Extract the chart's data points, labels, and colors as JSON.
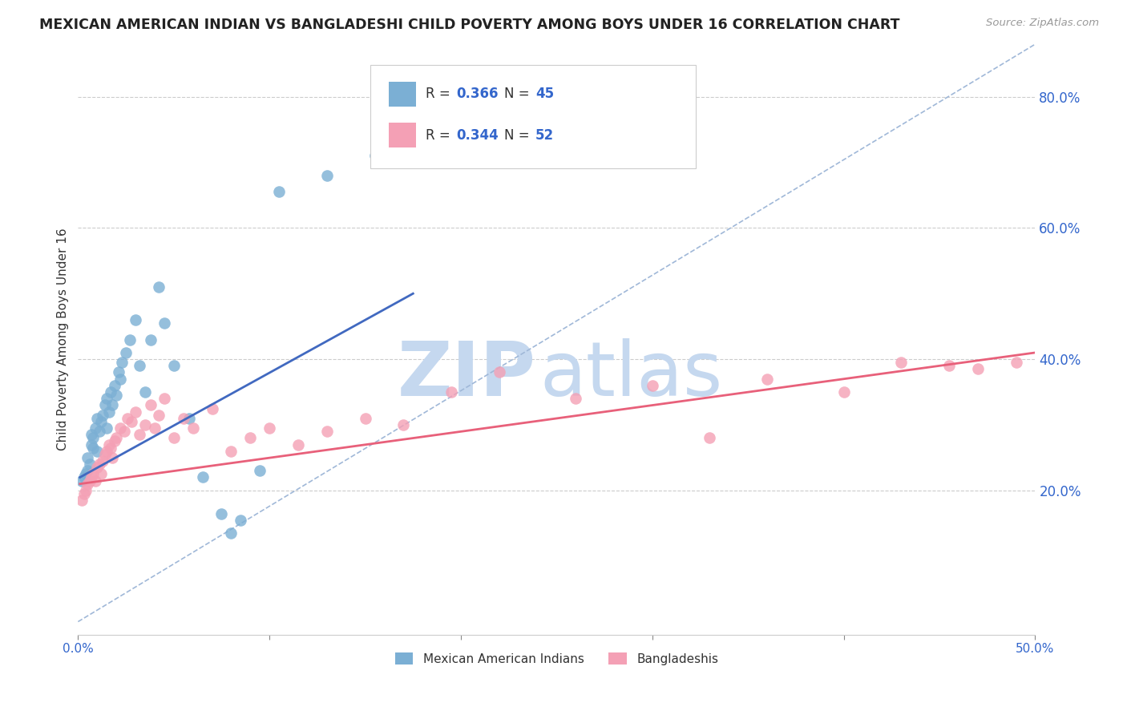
{
  "title": "MEXICAN AMERICAN INDIAN VS BANGLADESHI CHILD POVERTY AMONG BOYS UNDER 16 CORRELATION CHART",
  "source": "Source: ZipAtlas.com",
  "ylabel": "Child Poverty Among Boys Under 16",
  "y_tick_labels": [
    "20.0%",
    "40.0%",
    "60.0%",
    "80.0%"
  ],
  "y_tick_values": [
    0.2,
    0.4,
    0.6,
    0.8
  ],
  "xlim": [
    0.0,
    0.5
  ],
  "ylim": [
    -0.02,
    0.88
  ],
  "legend_r_blue": "0.366",
  "legend_n_blue": "45",
  "legend_r_pink": "0.344",
  "legend_n_pink": "52",
  "legend_label_blue": "Mexican American Indians",
  "legend_label_pink": "Bangladeshis",
  "blue_color": "#7bafd4",
  "pink_color": "#f4a0b5",
  "line_blue": "#4169c0",
  "line_pink": "#e8607a",
  "dash_color": "#a0b8d8",
  "watermark_zip_color": "#c5d8ef",
  "watermark_atlas_color": "#c5d8ef",
  "blue_line_x": [
    0.001,
    0.175
  ],
  "blue_line_y": [
    0.22,
    0.5
  ],
  "pink_line_x": [
    0.001,
    0.5
  ],
  "pink_line_y": [
    0.21,
    0.41
  ],
  "blue_points_x": [
    0.002,
    0.003,
    0.004,
    0.005,
    0.005,
    0.006,
    0.007,
    0.007,
    0.008,
    0.008,
    0.009,
    0.01,
    0.01,
    0.011,
    0.012,
    0.013,
    0.014,
    0.015,
    0.015,
    0.016,
    0.017,
    0.018,
    0.019,
    0.02,
    0.021,
    0.022,
    0.023,
    0.025,
    0.027,
    0.03,
    0.032,
    0.035,
    0.038,
    0.042,
    0.045,
    0.05,
    0.058,
    0.065,
    0.075,
    0.08,
    0.085,
    0.095,
    0.105,
    0.13,
    0.155
  ],
  "blue_points_y": [
    0.215,
    0.22,
    0.225,
    0.23,
    0.25,
    0.24,
    0.27,
    0.285,
    0.265,
    0.28,
    0.295,
    0.26,
    0.31,
    0.29,
    0.305,
    0.315,
    0.33,
    0.34,
    0.295,
    0.32,
    0.35,
    0.33,
    0.36,
    0.345,
    0.38,
    0.37,
    0.395,
    0.41,
    0.43,
    0.46,
    0.39,
    0.35,
    0.43,
    0.51,
    0.455,
    0.39,
    0.31,
    0.22,
    0.165,
    0.135,
    0.155,
    0.23,
    0.655,
    0.68,
    0.71
  ],
  "pink_points_x": [
    0.002,
    0.003,
    0.004,
    0.005,
    0.006,
    0.007,
    0.008,
    0.009,
    0.01,
    0.011,
    0.012,
    0.013,
    0.014,
    0.015,
    0.016,
    0.017,
    0.018,
    0.019,
    0.02,
    0.022,
    0.024,
    0.026,
    0.028,
    0.03,
    0.032,
    0.035,
    0.038,
    0.04,
    0.042,
    0.045,
    0.05,
    0.055,
    0.06,
    0.07,
    0.08,
    0.09,
    0.1,
    0.115,
    0.13,
    0.15,
    0.17,
    0.195,
    0.22,
    0.26,
    0.3,
    0.33,
    0.36,
    0.4,
    0.43,
    0.455,
    0.47,
    0.49
  ],
  "pink_points_y": [
    0.185,
    0.195,
    0.2,
    0.21,
    0.215,
    0.22,
    0.225,
    0.215,
    0.235,
    0.24,
    0.225,
    0.245,
    0.255,
    0.26,
    0.27,
    0.265,
    0.25,
    0.275,
    0.28,
    0.295,
    0.29,
    0.31,
    0.305,
    0.32,
    0.285,
    0.3,
    0.33,
    0.295,
    0.315,
    0.34,
    0.28,
    0.31,
    0.295,
    0.325,
    0.26,
    0.28,
    0.295,
    0.27,
    0.29,
    0.31,
    0.3,
    0.35,
    0.38,
    0.34,
    0.36,
    0.28,
    0.37,
    0.35,
    0.395,
    0.39,
    0.385,
    0.395
  ]
}
